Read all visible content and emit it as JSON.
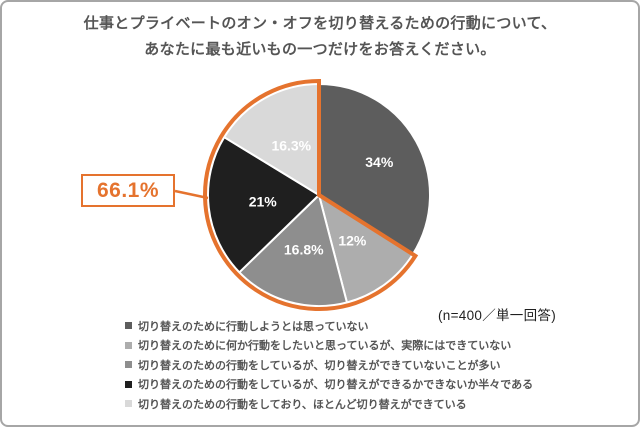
{
  "title": {
    "line1": "仕事とプライベートのオン・オフを切り替えるための行動について、",
    "line2": "あなたに最も近いもの一つだけをお答えください。"
  },
  "note": "(n=400／単一回答)",
  "colors": {
    "accent_orange": "#e5732e",
    "slice_label_text": "#ffffff",
    "title_text": "#555555",
    "legend_text": "#555555",
    "frame_border": "#a6a6a6"
  },
  "chart_data": {
    "type": "pie",
    "title": "仕事とプライベートのオン・オフを切り替えるための行動について、あなたに最も近いもの一つだけをお答えください。",
    "sample_note": "(n=400／単一回答)",
    "start_angle": "12-oclock, clockwise",
    "legend_position": "bottom",
    "segments": [
      {
        "label": "切り替えのために行動しようとは思っていない",
        "value": 34,
        "display": "34%",
        "color": "#5d5d5d"
      },
      {
        "label": "切り替えのために何か行動をしたいと思っているが、実際にはできていない",
        "value": 12,
        "display": "12%",
        "color": "#adadad"
      },
      {
        "label": "切り替えのための行動をしているが、切り替えができていないことが多い",
        "value": 16.8,
        "display": "16.8%",
        "color": "#8e8e8e"
      },
      {
        "label": "切り替えのための行動をしているが、切り替えができるかできないか半々である",
        "value": 21,
        "display": "21%",
        "color": "#1f1f1f"
      },
      {
        "label": "切り替えのための行動をしており、ほとんど切り替えができている",
        "value": 16.3,
        "display": "16.3%",
        "color": "#d9d9d9"
      }
    ],
    "highlight": {
      "segments": [
        1,
        2,
        3,
        4
      ],
      "total_display": "66.1%",
      "color": "#e5732e"
    }
  }
}
